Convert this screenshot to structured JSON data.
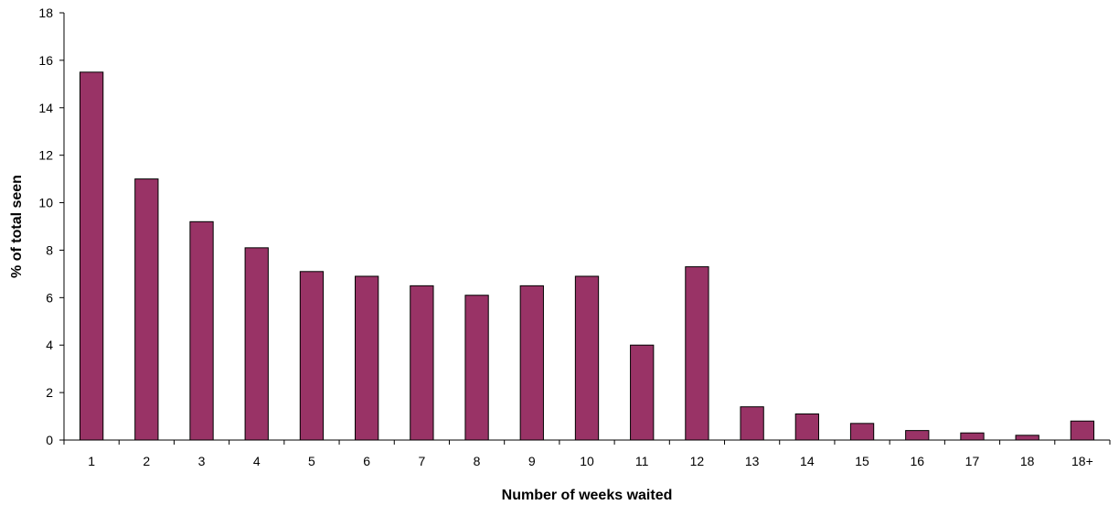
{
  "chart_data": {
    "type": "bar",
    "title": "",
    "xlabel": "Number of weeks waited",
    "ylabel": "% of total seen",
    "categories": [
      "1",
      "2",
      "3",
      "4",
      "5",
      "6",
      "7",
      "8",
      "9",
      "10",
      "11",
      "12",
      "13",
      "14",
      "15",
      "16",
      "17",
      "18",
      "18+"
    ],
    "values": [
      15.5,
      11.0,
      9.2,
      8.1,
      7.1,
      6.9,
      6.5,
      6.1,
      6.5,
      6.9,
      4.0,
      7.3,
      1.4,
      1.1,
      0.7,
      0.4,
      0.3,
      0.2,
      0.8
    ],
    "ylim": [
      0,
      18
    ],
    "yticks": [
      "0",
      "2",
      "4",
      "6",
      "8",
      "10",
      "12",
      "14",
      "16",
      "18"
    ],
    "grid": false,
    "legend": "none",
    "bar_color": "#993366"
  }
}
